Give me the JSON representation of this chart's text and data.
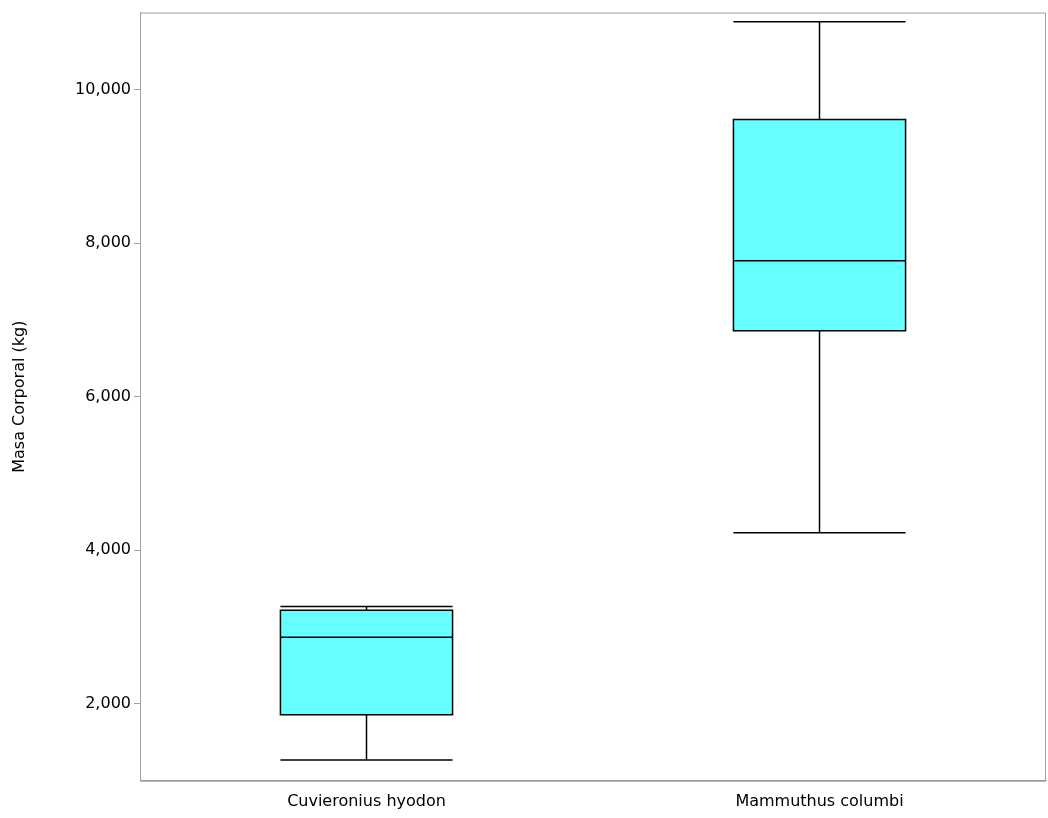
{
  "chart_data": {
    "type": "box",
    "ylabel": "Masa Corporal (kg)",
    "categories": [
      "Cuvieronius hyodon",
      "Mammuthus columbi"
    ],
    "color": "#66ffff",
    "boxes": [
      {
        "low": 1270,
        "q1": 1860,
        "median": 2870,
        "q3": 3220,
        "high": 3270
      },
      {
        "low": 4230,
        "q1": 6860,
        "median": 7770,
        "q3": 9610,
        "high": 10880
      }
    ],
    "ylim": [
      1000,
      11000
    ],
    "yticks": [
      {
        "value": 2000,
        "label": "2,000"
      },
      {
        "value": 4000,
        "label": "4,000"
      },
      {
        "value": 6000,
        "label": "6,000"
      },
      {
        "value": 8000,
        "label": "8,000"
      },
      {
        "value": 10000,
        "label": "10,000"
      }
    ],
    "grid": false,
    "legend": false
  }
}
